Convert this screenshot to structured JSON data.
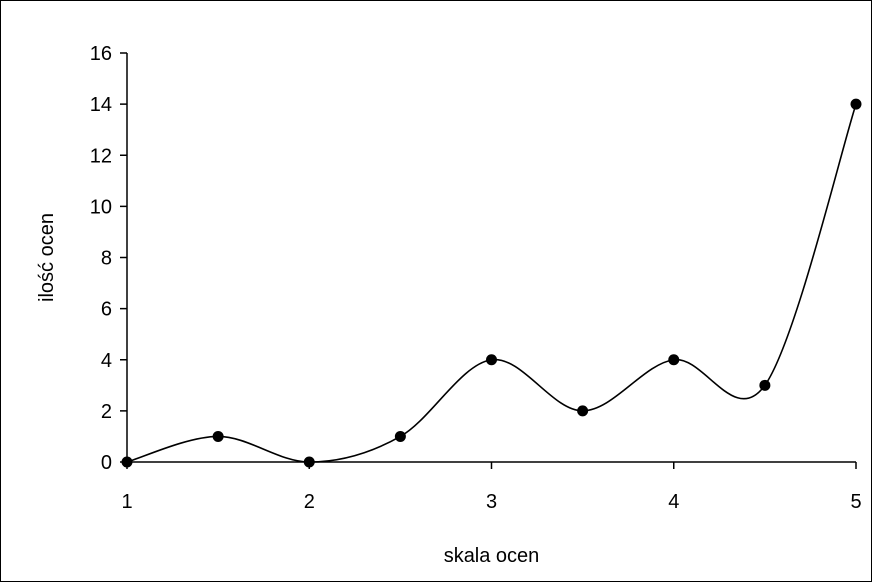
{
  "chart_data": {
    "type": "scatter",
    "title": "",
    "xlabel": "skala ocen",
    "ylabel": "ilość ocen",
    "xlim": [
      1,
      5
    ],
    "ylim": [
      0,
      16
    ],
    "x_ticks": [
      1,
      2,
      3,
      4,
      5
    ],
    "y_ticks": [
      0,
      2,
      4,
      6,
      8,
      10,
      12,
      14,
      16
    ],
    "smoothed_line": true,
    "grid": false,
    "legend": "none",
    "series": [
      {
        "x": [
          1,
          1.5,
          2,
          2.5,
          3,
          3.5,
          4,
          4.5,
          5
        ],
        "y": [
          0,
          1,
          0,
          1,
          4,
          2,
          4,
          3,
          14
        ]
      }
    ],
    "colors": {
      "marker": "#000000",
      "line": "#000000",
      "axis": "#000000"
    }
  }
}
